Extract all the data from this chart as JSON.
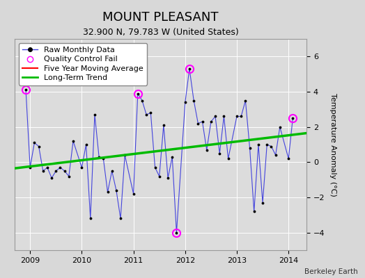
{
  "title": "MOUNT PLEASANT",
  "subtitle": "32.900 N, 79.783 W (United States)",
  "ylabel": "Temperature Anomaly (°C)",
  "credit": "Berkeley Earth",
  "bg_color": "#d8d8d8",
  "plot_bg_color": "#dcdcdc",
  "ylim": [
    -5,
    7
  ],
  "yticks": [
    -4,
    -2,
    0,
    2,
    4,
    6
  ],
  "xlim": [
    2008.7,
    2014.35
  ],
  "raw_x": [
    2008.917,
    2009.0,
    2009.083,
    2009.167,
    2009.25,
    2009.333,
    2009.417,
    2009.5,
    2009.583,
    2009.667,
    2009.75,
    2009.833,
    2010.0,
    2010.083,
    2010.167,
    2010.25,
    2010.333,
    2010.417,
    2010.5,
    2010.583,
    2010.667,
    2010.75,
    2010.833,
    2011.0,
    2011.083,
    2011.167,
    2011.25,
    2011.333,
    2011.417,
    2011.5,
    2011.583,
    2011.667,
    2011.75,
    2011.833,
    2012.0,
    2012.083,
    2012.167,
    2012.25,
    2012.333,
    2012.417,
    2012.5,
    2012.583,
    2012.667,
    2012.75,
    2012.833,
    2013.0,
    2013.083,
    2013.167,
    2013.25,
    2013.333,
    2013.417,
    2013.5,
    2013.583,
    2013.667,
    2013.75,
    2013.833,
    2014.0,
    2014.083
  ],
  "raw_y": [
    4.1,
    -0.3,
    1.1,
    0.9,
    -0.5,
    -0.3,
    -0.9,
    -0.5,
    -0.3,
    -0.5,
    -0.8,
    1.2,
    -0.3,
    1.0,
    -3.2,
    2.7,
    0.3,
    0.2,
    -1.7,
    -0.5,
    -1.6,
    -3.2,
    0.4,
    -1.8,
    3.9,
    3.5,
    2.7,
    2.8,
    -0.3,
    -0.8,
    2.1,
    -0.9,
    0.3,
    -4.0,
    3.4,
    5.3,
    3.5,
    2.2,
    2.3,
    0.7,
    2.3,
    2.6,
    0.5,
    2.6,
    0.2,
    2.6,
    2.6,
    3.5,
    0.8,
    -2.8,
    1.0,
    -2.3,
    1.0,
    0.9,
    0.4,
    2.0,
    0.2,
    2.5
  ],
  "qc_fail_x": [
    2008.917,
    2011.083,
    2011.833,
    2012.083,
    2014.083
  ],
  "qc_fail_y": [
    4.1,
    3.9,
    -4.0,
    5.3,
    2.5
  ],
  "trend_x": [
    2008.7,
    2014.35
  ],
  "trend_y": [
    -0.35,
    1.65
  ],
  "raw_line_color": "#4444dd",
  "raw_marker_color": "black",
  "raw_marker_size": 3.5,
  "qc_color": "magenta",
  "trend_color": "#00bb00",
  "trend_linewidth": 2.5,
  "title_fontsize": 13,
  "subtitle_fontsize": 9,
  "legend_fontsize": 8,
  "tick_fontsize": 8
}
